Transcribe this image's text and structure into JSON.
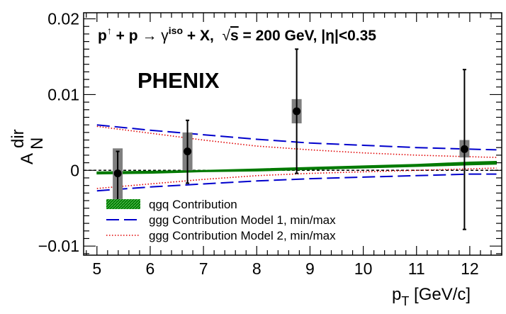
{
  "chart_data": {
    "type": "scatter",
    "experiment_label": "PHENIX",
    "reaction_label": {
      "p1": "p",
      "pol": "↑",
      "plus1": " + p ",
      "arrow": "→",
      "gamma": " γ",
      "iso": "iso",
      "rest": " + X,  ",
      "root": "√",
      "s": "s",
      "energy": " = 200 GeV, |η|<0.35"
    },
    "xlabel": {
      "main": "p",
      "sub": "T",
      "rest": " [GeV/c]"
    },
    "ylabel": {
      "main": "A",
      "sup": "dir",
      "sub": "N"
    },
    "xlim": [
      4.75,
      12.6
    ],
    "ylim": [
      -0.0112,
      0.0208
    ],
    "x_ticks": [
      5,
      6,
      7,
      8,
      9,
      10,
      11,
      12
    ],
    "y_ticks": [
      {
        "value": -0.01,
        "label": "−0.01"
      },
      {
        "value": 0,
        "label": "0"
      },
      {
        "value": 0.01,
        "label": "0.01"
      },
      {
        "value": 0.02,
        "label": "0.02"
      }
    ],
    "zero_line": true,
    "colors": {
      "data": "#000000",
      "sys_box": "#7f7f7f",
      "qgq": "#007a00",
      "model1": "#0000cc",
      "model2": "#e00000"
    },
    "data_points": [
      {
        "x": 5.39,
        "y": -0.0004,
        "stat_lo": -0.004,
        "stat_hi": 0.0025,
        "sys_lo": -0.0038,
        "sys_hi": 0.0029
      },
      {
        "x": 6.7,
        "y": 0.0025,
        "stat_lo": -0.0017,
        "stat_hi": 0.0066,
        "sys_lo": 0.0,
        "sys_hi": 0.005
      },
      {
        "x": 8.75,
        "y": 0.0078,
        "stat_lo": -0.0004,
        "stat_hi": 0.016,
        "sys_lo": 0.0062,
        "sys_hi": 0.0094
      },
      {
        "x": 11.9,
        "y": 0.0028,
        "stat_lo": -0.0078,
        "stat_hi": 0.0133,
        "sys_lo": 0.0017,
        "sys_hi": 0.004
      }
    ],
    "curves": [
      {
        "name": "qgq Contribution",
        "style": "band",
        "x": [
          5.0,
          6.0,
          7.0,
          8.0,
          9.0,
          10.0,
          11.0,
          12.0,
          12.5
        ],
        "lo": [
          -0.0005,
          -0.0004,
          -0.0002,
          -0.0001,
          0.0001,
          0.0003,
          0.0005,
          0.0007,
          0.0008
        ],
        "hi": [
          -0.0002,
          -0.0001,
          0.0,
          0.0002,
          0.0004,
          0.0006,
          0.0008,
          0.0011,
          0.0012
        ]
      },
      {
        "name": "ggg Contribution Model 1, min/max",
        "style": "long-dash",
        "x": [
          5.0,
          6.0,
          7.0,
          8.0,
          9.0,
          10.0,
          11.0,
          12.0,
          12.5
        ],
        "max": [
          0.006,
          0.0053,
          0.0047,
          0.0041,
          0.0036,
          0.0033,
          0.003,
          0.0028,
          0.0027
        ],
        "min": [
          -0.0027,
          -0.0022,
          -0.0018,
          -0.0014,
          -0.0011,
          -0.0009,
          -0.0007,
          -0.0005,
          -0.0005
        ]
      },
      {
        "name": "ggg Contribution Model 2, min/max",
        "style": "dotted",
        "x": [
          5.0,
          6.0,
          7.0,
          8.0,
          9.0,
          10.0,
          11.0,
          12.0,
          12.5
        ],
        "max": [
          0.0058,
          0.0049,
          0.004,
          0.0032,
          0.0027,
          0.0023,
          0.002,
          0.0018,
          0.0017
        ],
        "min": [
          -0.0024,
          -0.0018,
          -0.0012,
          -0.0007,
          -0.0004,
          -0.0002,
          0.0,
          0.0002,
          0.0003
        ]
      }
    ],
    "legend": [
      {
        "label": "qgq Contribution",
        "style": "band"
      },
      {
        "label": "ggg Contribution Model 1, min/max",
        "style": "long-dash"
      },
      {
        "label": "ggg Contribution Model 2, min/max",
        "style": "dotted"
      }
    ]
  }
}
